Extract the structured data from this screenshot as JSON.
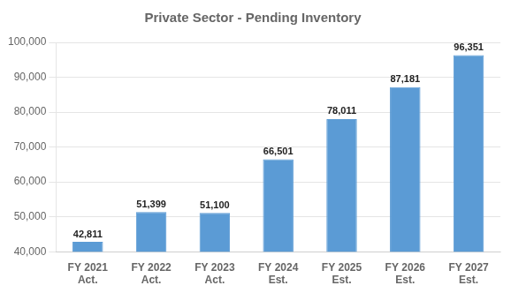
{
  "chart_data": {
    "type": "bar",
    "title": "Private Sector - Pending Inventory",
    "categories": [
      "FY 2021\nAct.",
      "FY 2022\nAct.",
      "FY 2023\nAct.",
      "FY 2024\nEst.",
      "FY 2025\nEst.",
      "FY 2026\nEst.",
      "FY 2027\nEst."
    ],
    "values": [
      42811,
      51399,
      51100,
      66501,
      78011,
      87181,
      96351
    ],
    "value_labels": [
      "42,811",
      "51,399",
      "51,100",
      "66,501",
      "78,011",
      "87,181",
      "96,351"
    ],
    "data_labels": true,
    "color": "#5B9BD5",
    "ylim": [
      40000,
      100000
    ],
    "yticks": [
      {
        "value": 40000,
        "label": "40,000"
      },
      {
        "value": 50000,
        "label": "50,000"
      },
      {
        "value": 60000,
        "label": "60,000"
      },
      {
        "value": 70000,
        "label": "70,000"
      },
      {
        "value": 80000,
        "label": "80,000"
      },
      {
        "value": 90000,
        "label": "90,000"
      },
      {
        "value": 100000,
        "label": "100,000"
      }
    ],
    "grid": true
  }
}
